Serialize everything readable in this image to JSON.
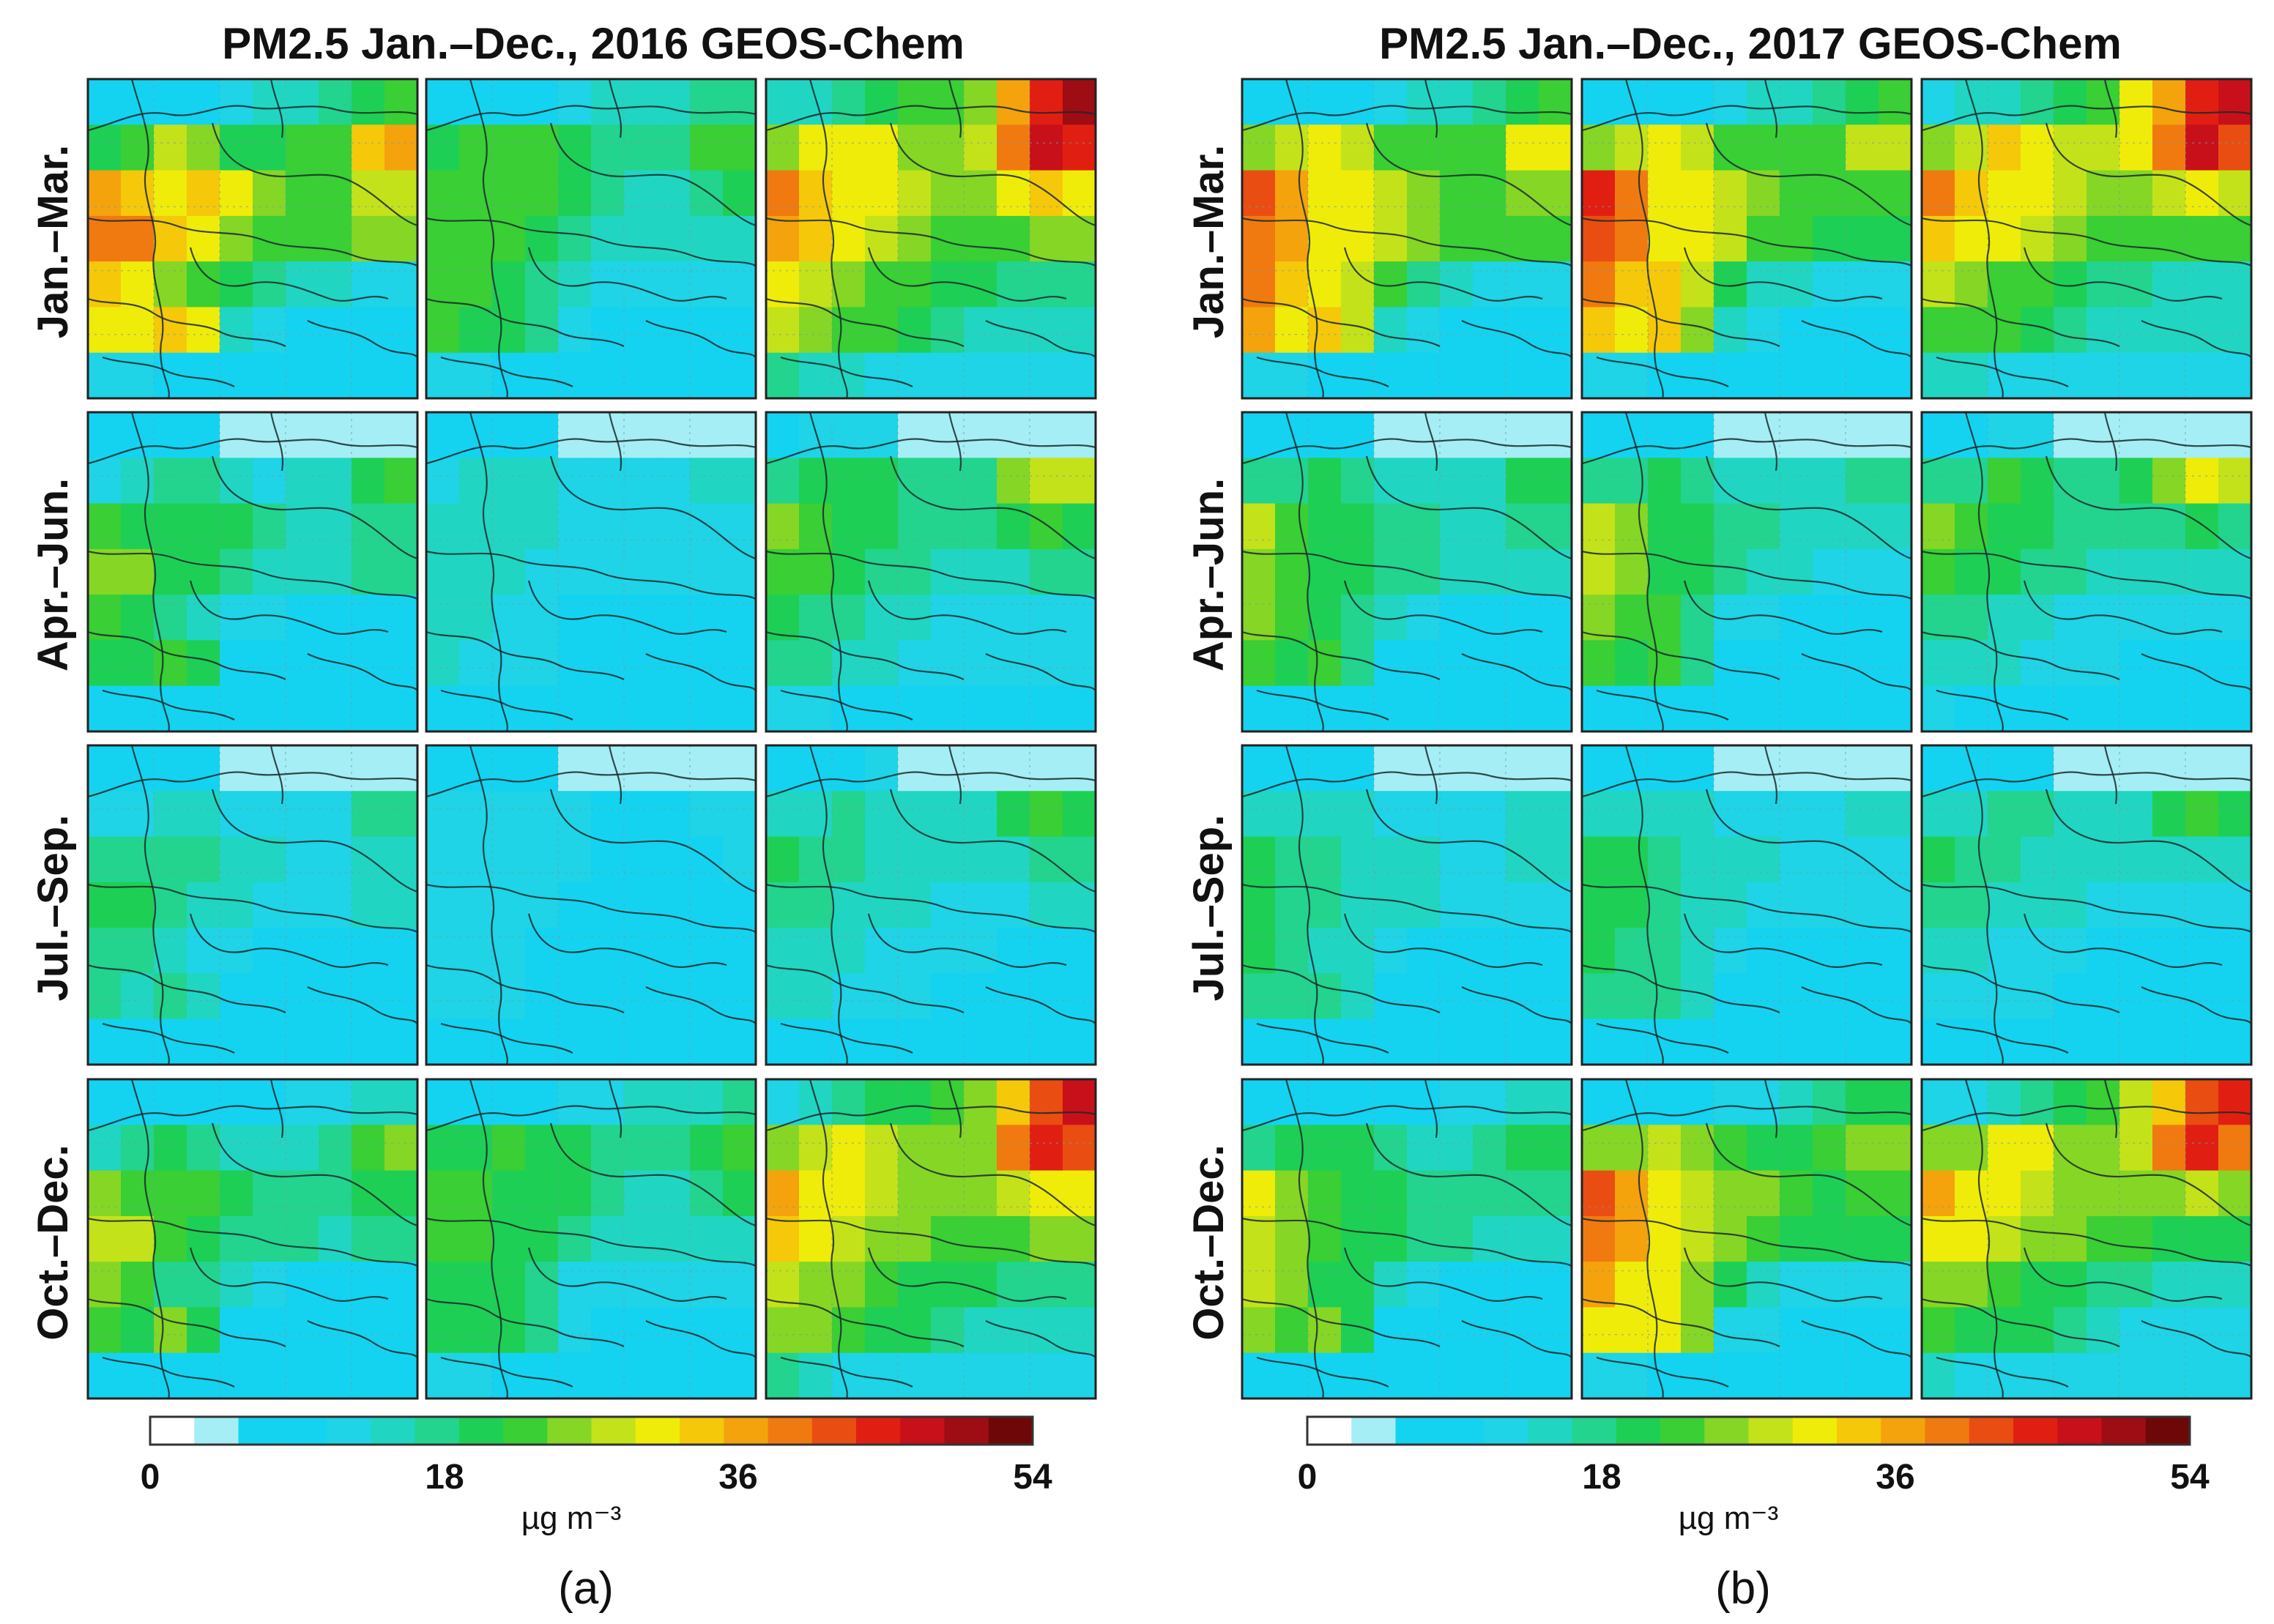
{
  "chart_data": [
    {
      "type": "heatmap",
      "title": "PM2.5 Jan.–Dec., 2016 GEOS-Chem",
      "sublabel": "(a)",
      "row_labels": [
        "Jan.–Mar.",
        "Apr.–Jun.",
        "Jul.–Sep.",
        "Oct.–Dec."
      ],
      "colorbar": {
        "min": 0,
        "max": 54,
        "ticks": [
          "0",
          "18",
          "36",
          "54"
        ],
        "unit": "µg m⁻³",
        "levels": 20
      },
      "grid_approx_values": [
        [
          [
            9,
            9,
            9,
            10,
            12,
            14,
            16,
            18,
            20,
            22
          ],
          [
            20,
            24,
            27,
            25,
            21,
            20,
            22,
            24,
            33,
            36
          ],
          [
            36,
            33,
            32,
            33,
            30,
            25,
            24,
            24,
            28,
            28
          ],
          [
            40,
            38,
            33,
            30,
            26,
            24,
            23,
            22,
            26,
            26
          ],
          [
            35,
            32,
            26,
            24,
            20,
            18,
            15,
            14,
            12,
            12
          ],
          [
            32,
            30,
            34,
            30,
            14,
            12,
            10,
            10,
            10,
            10
          ],
          [
            12,
            12,
            10,
            10,
            10,
            10,
            10,
            10,
            10,
            10
          ]
        ],
        [
          [
            8,
            8,
            9,
            10,
            12,
            14,
            15,
            16,
            17,
            18
          ],
          [
            20,
            22,
            24,
            22,
            20,
            18,
            18,
            18,
            22,
            24
          ],
          [
            24,
            24,
            22,
            22,
            20,
            18,
            16,
            16,
            18,
            20
          ],
          [
            24,
            24,
            22,
            20,
            18,
            16,
            16,
            16,
            16,
            16
          ],
          [
            22,
            22,
            20,
            18,
            14,
            12,
            12,
            12,
            12,
            12
          ],
          [
            22,
            20,
            20,
            18,
            12,
            10,
            10,
            10,
            10,
            10
          ],
          [
            12,
            12,
            10,
            10,
            10,
            10,
            10,
            10,
            10,
            10
          ]
        ],
        [
          [
            14,
            16,
            18,
            20,
            22,
            24,
            26,
            36,
            44,
            50
          ],
          [
            26,
            30,
            32,
            30,
            26,
            26,
            28,
            40,
            46,
            44
          ],
          [
            38,
            34,
            32,
            30,
            28,
            26,
            26,
            30,
            34,
            32
          ],
          [
            36,
            34,
            30,
            28,
            26,
            24,
            24,
            24,
            26,
            26
          ],
          [
            30,
            28,
            26,
            24,
            22,
            20,
            20,
            18,
            18,
            18
          ],
          [
            28,
            26,
            24,
            22,
            20,
            18,
            16,
            16,
            16,
            16
          ],
          [
            18,
            16,
            14,
            12,
            12,
            12,
            12,
            12,
            12,
            12
          ]
        ]
      ]
    },
    {
      "type": "heatmap",
      "title": "PM2.5 Jan.–Dec., 2017 GEOS-Chem",
      "sublabel": "(b)",
      "row_labels": [
        "Jan.–Mar.",
        "Apr.–Jun.",
        "Jul.–Sep.",
        "Oct.–Dec."
      ],
      "colorbar": {
        "min": 0,
        "max": 54,
        "ticks": [
          "0",
          "18",
          "36",
          "54"
        ],
        "unit": "µg m⁻³",
        "levels": 20
      },
      "grid_approx_values": [
        [
          [
            9,
            9,
            9,
            10,
            12,
            14,
            16,
            18,
            20,
            22
          ],
          [
            26,
            28,
            30,
            28,
            24,
            22,
            22,
            24,
            30,
            30
          ],
          [
            42,
            36,
            32,
            30,
            28,
            26,
            24,
            24,
            26,
            26
          ],
          [
            40,
            36,
            32,
            30,
            28,
            26,
            24,
            22,
            22,
            22
          ],
          [
            38,
            34,
            30,
            28,
            22,
            18,
            14,
            12,
            12,
            12
          ],
          [
            36,
            32,
            34,
            28,
            14,
            12,
            10,
            10,
            10,
            10
          ],
          [
            12,
            12,
            10,
            10,
            10,
            10,
            10,
            10,
            10,
            10
          ]
        ],
        [
          [
            9,
            9,
            9,
            10,
            12,
            14,
            16,
            18,
            20,
            22
          ],
          [
            26,
            28,
            30,
            28,
            24,
            22,
            22,
            24,
            28,
            28
          ],
          [
            44,
            38,
            32,
            30,
            28,
            26,
            24,
            22,
            24,
            24
          ],
          [
            42,
            38,
            32,
            30,
            28,
            24,
            22,
            20,
            20,
            20
          ],
          [
            38,
            34,
            34,
            28,
            20,
            16,
            14,
            12,
            12,
            12
          ],
          [
            34,
            32,
            34,
            26,
            14,
            12,
            10,
            10,
            10,
            10
          ],
          [
            12,
            12,
            10,
            10,
            10,
            10,
            10,
            10,
            10,
            10
          ]
        ],
        [
          [
            12,
            14,
            16,
            18,
            20,
            24,
            30,
            36,
            44,
            46
          ],
          [
            26,
            28,
            34,
            32,
            28,
            28,
            30,
            40,
            48,
            42
          ],
          [
            38,
            34,
            32,
            30,
            28,
            26,
            26,
            28,
            30,
            28
          ],
          [
            34,
            32,
            30,
            28,
            26,
            24,
            24,
            22,
            22,
            22
          ],
          [
            28,
            26,
            24,
            22,
            20,
            18,
            18,
            16,
            16,
            16
          ],
          [
            24,
            22,
            22,
            20,
            18,
            16,
            14,
            14,
            14,
            14
          ],
          [
            16,
            14,
            12,
            12,
            12,
            12,
            12,
            12,
            12,
            12
          ]
        ]
      ]
    }
  ]
}
